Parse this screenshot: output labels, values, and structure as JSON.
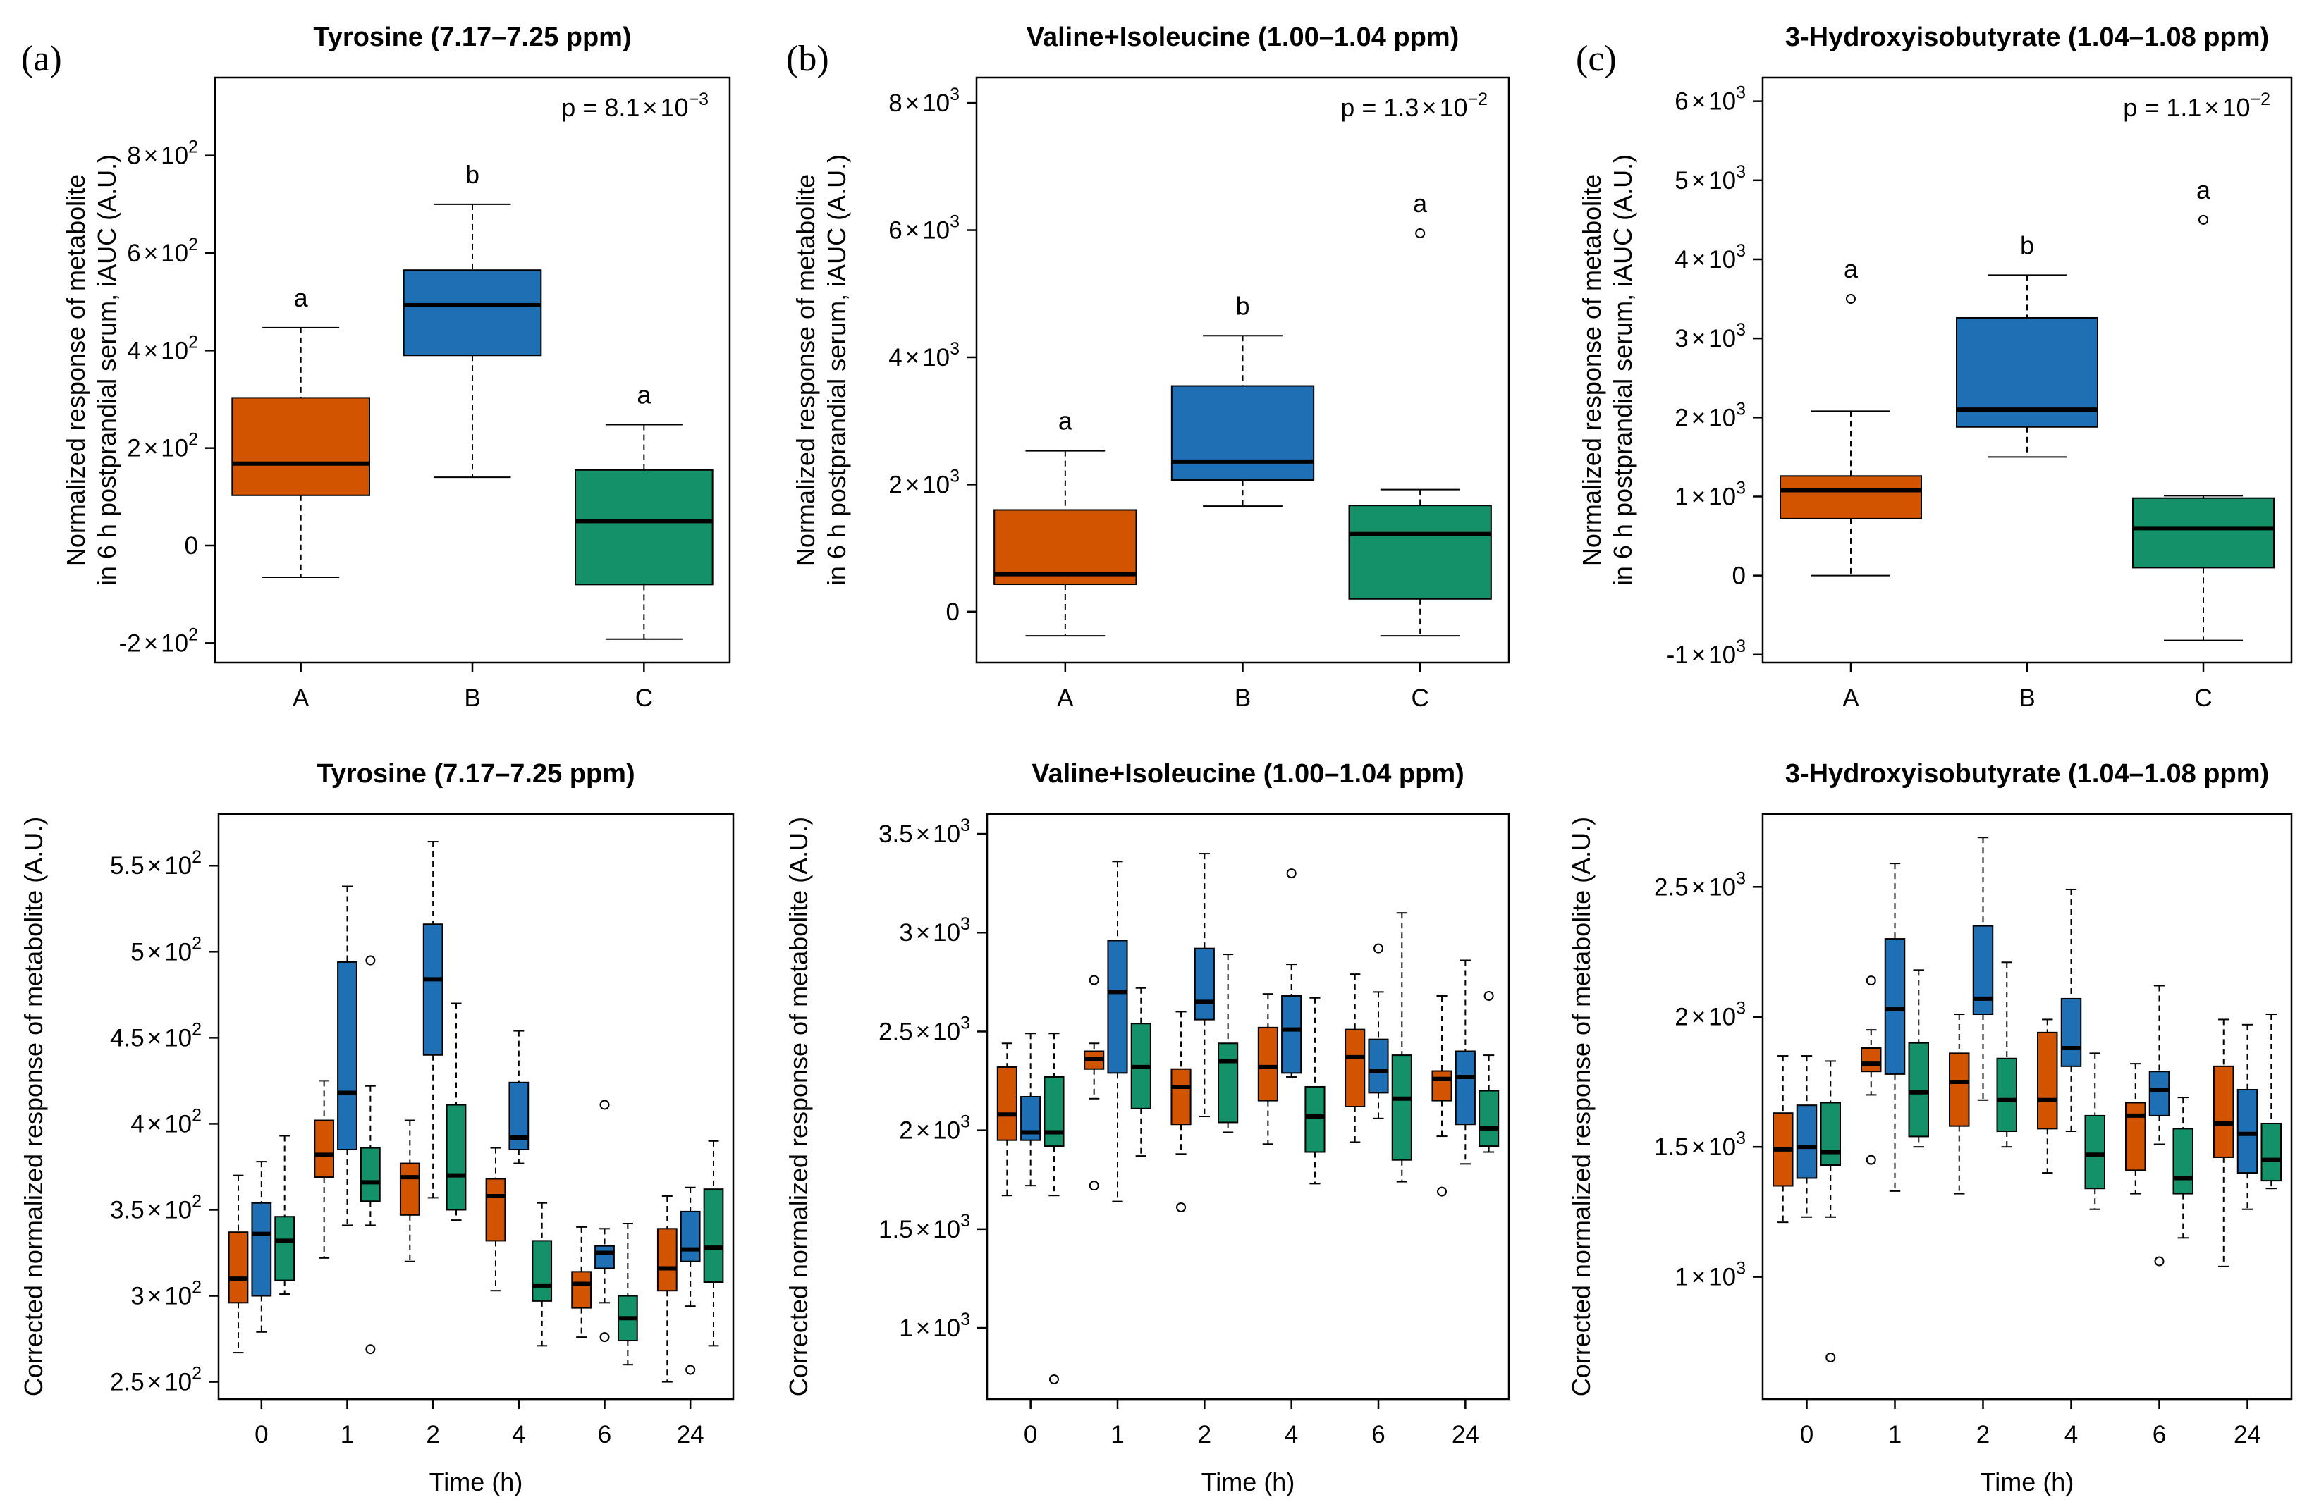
{
  "colors": {
    "A": "#D35400",
    "B": "#1F6FB4",
    "C": "#149169"
  },
  "chart_data": [
    {
      "type": "boxplot",
      "panel": "(a)",
      "title": "Tyrosine (7.17–7.25 ppm)",
      "ylabel_lines": [
        "Normalized response of metabolite",
        "in 6 h postprandial serum, iAUC (A.U.)"
      ],
      "xlabel": "",
      "ylim": [
        -240,
        960
      ],
      "yticks": [
        {
          "v": -200,
          "m": "-2",
          "e": "2"
        },
        {
          "v": 0,
          "m": "0",
          "e": ""
        },
        {
          "v": 200,
          "m": "2",
          "e": "2"
        },
        {
          "v": 400,
          "m": "4",
          "e": "2"
        },
        {
          "v": 600,
          "m": "6",
          "e": "2"
        },
        {
          "v": 800,
          "m": "8",
          "e": "2"
        }
      ],
      "p_value": {
        "prefix": "p = ",
        "mantissa": "8.1",
        "exponent": "−3"
      },
      "categories": [
        "A",
        "B",
        "C"
      ],
      "boxes": [
        {
          "group": "A",
          "min": -65,
          "q1": 103,
          "median": 168,
          "q3": 303,
          "max": 447,
          "outliers": [],
          "letter": "a"
        },
        {
          "group": "B",
          "min": 140,
          "q1": 390,
          "median": 493,
          "q3": 565,
          "max": 700,
          "outliers": [],
          "letter": "b"
        },
        {
          "group": "C",
          "min": -192,
          "q1": -80,
          "median": 50,
          "q3": 155,
          "max": 248,
          "outliers": [],
          "letter": "a"
        }
      ]
    },
    {
      "type": "boxplot",
      "panel": "(b)",
      "title": "Valine+Isoleucine (1.00–1.04 ppm)",
      "ylabel_lines": [
        "Normalized response of metabolite",
        "in 6 h postprandial serum, iAUC (A.U.)"
      ],
      "xlabel": "",
      "ylim": [
        -800,
        8400
      ],
      "yticks": [
        {
          "v": 0,
          "m": "0",
          "e": ""
        },
        {
          "v": 2000,
          "m": "2",
          "e": "3"
        },
        {
          "v": 4000,
          "m": "4",
          "e": "3"
        },
        {
          "v": 6000,
          "m": "6",
          "e": "3"
        },
        {
          "v": 8000,
          "m": "8",
          "e": "3"
        }
      ],
      "p_value": {
        "prefix": "p = ",
        "mantissa": "1.3",
        "exponent": "−2"
      },
      "categories": [
        "A",
        "B",
        "C"
      ],
      "boxes": [
        {
          "group": "A",
          "min": -380,
          "q1": 430,
          "median": 590,
          "q3": 1600,
          "max": 2530,
          "outliers": [],
          "letter": "a"
        },
        {
          "group": "B",
          "min": 1660,
          "q1": 2070,
          "median": 2360,
          "q3": 3550,
          "max": 4340,
          "outliers": [],
          "letter": "b"
        },
        {
          "group": "C",
          "min": -380,
          "q1": 200,
          "median": 1220,
          "q3": 1670,
          "max": 1920,
          "outliers": [
            5950
          ],
          "letter": "a"
        }
      ]
    },
    {
      "type": "boxplot",
      "panel": "(c)",
      "title": "3-Hydroxyisobutyrate (1.04–1.08 ppm)",
      "ylabel_lines": [
        "Normalized response of metabolite",
        "in 6 h postprandial serum, iAUC (A.U.)"
      ],
      "xlabel": "",
      "ylim": [
        -1100,
        6300
      ],
      "yticks": [
        {
          "v": -1000,
          "m": "-1",
          "e": "3"
        },
        {
          "v": 0,
          "m": "0",
          "e": ""
        },
        {
          "v": 1000,
          "m": "1",
          "e": "3"
        },
        {
          "v": 2000,
          "m": "2",
          "e": "3"
        },
        {
          "v": 3000,
          "m": "3",
          "e": "3"
        },
        {
          "v": 4000,
          "m": "4",
          "e": "3"
        },
        {
          "v": 5000,
          "m": "5",
          "e": "3"
        },
        {
          "v": 6000,
          "m": "6",
          "e": "3"
        }
      ],
      "p_value": {
        "prefix": "p = ",
        "mantissa": "1.1",
        "exponent": "−2"
      },
      "categories": [
        "A",
        "B",
        "C"
      ],
      "boxes": [
        {
          "group": "A",
          "min": 0,
          "q1": 720,
          "median": 1080,
          "q3": 1260,
          "max": 2080,
          "outliers": [
            3500
          ],
          "letter": "a"
        },
        {
          "group": "B",
          "min": 1500,
          "q1": 1880,
          "median": 2100,
          "q3": 3260,
          "max": 3800,
          "outliers": [],
          "letter": "b"
        },
        {
          "group": "C",
          "min": -820,
          "q1": 100,
          "median": 600,
          "q3": 980,
          "max": 1010,
          "outliers": [
            4500
          ],
          "letter": "a"
        }
      ]
    },
    {
      "type": "grouped_boxplot",
      "title": "Tyrosine (7.17–7.25 ppm)",
      "ylabel": "Corrected normalized response of metabolite (A.U.)",
      "xlabel": "Time (h)",
      "ylim": [
        240,
        580
      ],
      "yticks": [
        {
          "v": 250,
          "m": "2.5",
          "e": "2"
        },
        {
          "v": 300,
          "m": "3",
          "e": "2"
        },
        {
          "v": 350,
          "m": "3.5",
          "e": "2"
        },
        {
          "v": 400,
          "m": "4",
          "e": "2"
        },
        {
          "v": 450,
          "m": "4.5",
          "e": "2"
        },
        {
          "v": 500,
          "m": "5",
          "e": "2"
        },
        {
          "v": 550,
          "m": "5.5",
          "e": "2"
        }
      ],
      "categories": [
        "0",
        "1",
        "2",
        "4",
        "6",
        "24"
      ],
      "series": [
        {
          "name": "A",
          "boxes": [
            {
              "min": 267,
              "q1": 296,
              "median": 310,
              "q3": 337,
              "max": 370,
              "outliers": []
            },
            {
              "min": 322,
              "q1": 369,
              "median": 382,
              "q3": 402,
              "max": 425,
              "outliers": []
            },
            {
              "min": 320,
              "q1": 347,
              "median": 369,
              "q3": 377,
              "max": 402,
              "outliers": []
            },
            {
              "min": 303,
              "q1": 332,
              "median": 358,
              "q3": 368,
              "max": 386,
              "outliers": []
            },
            {
              "min": 276,
              "q1": 293,
              "median": 307,
              "q3": 314,
              "max": 340,
              "outliers": []
            },
            {
              "min": 250,
              "q1": 303,
              "median": 316,
              "q3": 339,
              "max": 358,
              "outliers": []
            }
          ]
        },
        {
          "name": "B",
          "boxes": [
            {
              "min": 279,
              "q1": 300,
              "median": 336,
              "q3": 354,
              "max": 378,
              "outliers": []
            },
            {
              "min": 341,
              "q1": 385,
              "median": 418,
              "q3": 494,
              "max": 538,
              "outliers": []
            },
            {
              "min": 357,
              "q1": 440,
              "median": 484,
              "q3": 516,
              "max": 564,
              "outliers": []
            },
            {
              "min": 377,
              "q1": 385,
              "median": 392,
              "q3": 424,
              "max": 454,
              "outliers": []
            },
            {
              "min": 296,
              "q1": 316,
              "median": 325,
              "q3": 329,
              "max": 339,
              "outliers": [
                276,
                411
              ]
            },
            {
              "min": 294,
              "q1": 320,
              "median": 327,
              "q3": 349,
              "max": 363,
              "outliers": [
                257
              ]
            }
          ]
        },
        {
          "name": "C",
          "boxes": [
            {
              "min": 301,
              "q1": 309,
              "median": 332,
              "q3": 346,
              "max": 393,
              "outliers": []
            },
            {
              "min": 341,
              "q1": 355,
              "median": 366,
              "q3": 386,
              "max": 422,
              "outliers": [
                269,
                495
              ]
            },
            {
              "min": 344,
              "q1": 350,
              "median": 370,
              "q3": 411,
              "max": 470,
              "outliers": []
            },
            {
              "min": 271,
              "q1": 297,
              "median": 306,
              "q3": 332,
              "max": 354,
              "outliers": []
            },
            {
              "min": 260,
              "q1": 274,
              "median": 287,
              "q3": 300,
              "max": 342,
              "outliers": []
            },
            {
              "min": 271,
              "q1": 308,
              "median": 328,
              "q3": 362,
              "max": 390,
              "outliers": []
            }
          ]
        }
      ]
    },
    {
      "type": "grouped_boxplot",
      "title": "Valine+Isoleucine (1.00–1.04 ppm)",
      "ylabel": "Corrected normalized response of metabolite (A.U.)",
      "xlabel": "Time (h)",
      "ylim": [
        640,
        3600
      ],
      "yticks": [
        {
          "v": 1000,
          "m": "1",
          "e": "3"
        },
        {
          "v": 1500,
          "m": "1.5",
          "e": "3"
        },
        {
          "v": 2000,
          "m": "2",
          "e": "3"
        },
        {
          "v": 2500,
          "m": "2.5",
          "e": "3"
        },
        {
          "v": 3000,
          "m": "3",
          "e": "3"
        },
        {
          "v": 3500,
          "m": "3.5",
          "e": "3"
        }
      ],
      "categories": [
        "0",
        "1",
        "2",
        "4",
        "6",
        "24"
      ],
      "series": [
        {
          "name": "A",
          "boxes": [
            {
              "min": 1670,
              "q1": 1950,
              "median": 2080,
              "q3": 2320,
              "max": 2440,
              "outliers": []
            },
            {
              "min": 2160,
              "q1": 2310,
              "median": 2360,
              "q3": 2400,
              "max": 2440,
              "outliers": [
                1720,
                2760
              ]
            },
            {
              "min": 1880,
              "q1": 2030,
              "median": 2220,
              "q3": 2310,
              "max": 2600,
              "outliers": [
                1610
              ]
            },
            {
              "min": 1930,
              "q1": 2150,
              "median": 2320,
              "q3": 2520,
              "max": 2690,
              "outliers": []
            },
            {
              "min": 1940,
              "q1": 2120,
              "median": 2370,
              "q3": 2510,
              "max": 2790,
              "outliers": []
            },
            {
              "min": 1970,
              "q1": 2150,
              "median": 2260,
              "q3": 2300,
              "max": 2680,
              "outliers": [
                1690
              ]
            }
          ]
        },
        {
          "name": "B",
          "boxes": [
            {
              "min": 1720,
              "q1": 1950,
              "median": 1990,
              "q3": 2170,
              "max": 2490,
              "outliers": []
            },
            {
              "min": 1640,
              "q1": 2290,
              "median": 2700,
              "q3": 2960,
              "max": 3360,
              "outliers": []
            },
            {
              "min": 2070,
              "q1": 2560,
              "median": 2650,
              "q3": 2920,
              "max": 3400,
              "outliers": []
            },
            {
              "min": 2270,
              "q1": 2290,
              "median": 2510,
              "q3": 2680,
              "max": 2840,
              "outliers": [
                3300
              ]
            },
            {
              "min": 2060,
              "q1": 2190,
              "median": 2300,
              "q3": 2460,
              "max": 2700,
              "outliers": [
                2920
              ]
            },
            {
              "min": 1830,
              "q1": 2030,
              "median": 2270,
              "q3": 2400,
              "max": 2860,
              "outliers": []
            }
          ]
        },
        {
          "name": "C",
          "boxes": [
            {
              "min": 1670,
              "q1": 1920,
              "median": 1990,
              "q3": 2270,
              "max": 2490,
              "outliers": [
                740
              ]
            },
            {
              "min": 1870,
              "q1": 2110,
              "median": 2320,
              "q3": 2540,
              "max": 2720,
              "outliers": []
            },
            {
              "min": 1990,
              "q1": 2040,
              "median": 2350,
              "q3": 2440,
              "max": 2890,
              "outliers": []
            },
            {
              "min": 1730,
              "q1": 1890,
              "median": 2070,
              "q3": 2220,
              "max": 2670,
              "outliers": []
            },
            {
              "min": 1740,
              "q1": 1850,
              "median": 2160,
              "q3": 2380,
              "max": 3100,
              "outliers": []
            },
            {
              "min": 1890,
              "q1": 1920,
              "median": 2010,
              "q3": 2200,
              "max": 2380,
              "outliers": [
                2680
              ]
            }
          ]
        }
      ]
    },
    {
      "type": "grouped_boxplot",
      "title": "3-Hydroxyisobutyrate (1.04–1.08 ppm)",
      "ylabel": "Corrected normalized response of metabolite (A.U.)",
      "xlabel": "Time (h)",
      "ylim": [
        530,
        2780
      ],
      "yticks": [
        {
          "v": 1000,
          "m": "1",
          "e": "3"
        },
        {
          "v": 1500,
          "m": "1.5",
          "e": "3"
        },
        {
          "v": 2000,
          "m": "2",
          "e": "3"
        },
        {
          "v": 2500,
          "m": "2.5",
          "e": "3"
        }
      ],
      "categories": [
        "0",
        "1",
        "2",
        "4",
        "6",
        "24"
      ],
      "series": [
        {
          "name": "A",
          "boxes": [
            {
              "min": 1210,
              "q1": 1350,
              "median": 1490,
              "q3": 1630,
              "max": 1850,
              "outliers": []
            },
            {
              "min": 1700,
              "q1": 1790,
              "median": 1820,
              "q3": 1880,
              "max": 1950,
              "outliers": [
                1450,
                2140
              ]
            },
            {
              "min": 1320,
              "q1": 1580,
              "median": 1750,
              "q3": 1860,
              "max": 2010,
              "outliers": []
            },
            {
              "min": 1400,
              "q1": 1570,
              "median": 1680,
              "q3": 1940,
              "max": 1990,
              "outliers": []
            },
            {
              "min": 1320,
              "q1": 1410,
              "median": 1620,
              "q3": 1670,
              "max": 1820,
              "outliers": []
            },
            {
              "min": 1040,
              "q1": 1460,
              "median": 1590,
              "q3": 1810,
              "max": 1990,
              "outliers": []
            }
          ]
        },
        {
          "name": "B",
          "boxes": [
            {
              "min": 1230,
              "q1": 1380,
              "median": 1500,
              "q3": 1660,
              "max": 1850,
              "outliers": []
            },
            {
              "min": 1330,
              "q1": 1780,
              "median": 2030,
              "q3": 2300,
              "max": 2590,
              "outliers": []
            },
            {
              "min": 1680,
              "q1": 2010,
              "median": 2070,
              "q3": 2350,
              "max": 2690,
              "outliers": []
            },
            {
              "min": 1560,
              "q1": 1810,
              "median": 1880,
              "q3": 2070,
              "max": 2490,
              "outliers": []
            },
            {
              "min": 1510,
              "q1": 1620,
              "median": 1720,
              "q3": 1790,
              "max": 2120,
              "outliers": [
                1060
              ]
            },
            {
              "min": 1260,
              "q1": 1400,
              "median": 1550,
              "q3": 1720,
              "max": 1970,
              "outliers": []
            }
          ]
        },
        {
          "name": "C",
          "boxes": [
            {
              "min": 1230,
              "q1": 1430,
              "median": 1480,
              "q3": 1670,
              "max": 1830,
              "outliers": [
                690
              ]
            },
            {
              "min": 1500,
              "q1": 1540,
              "median": 1710,
              "q3": 1900,
              "max": 2180,
              "outliers": []
            },
            {
              "min": 1500,
              "q1": 1560,
              "median": 1680,
              "q3": 1840,
              "max": 2210,
              "outliers": []
            },
            {
              "min": 1260,
              "q1": 1340,
              "median": 1470,
              "q3": 1620,
              "max": 1860,
              "outliers": []
            },
            {
              "min": 1150,
              "q1": 1320,
              "median": 1380,
              "q3": 1570,
              "max": 1690,
              "outliers": []
            },
            {
              "min": 1340,
              "q1": 1370,
              "median": 1450,
              "q3": 1590,
              "max": 2010,
              "outliers": []
            }
          ]
        }
      ]
    }
  ]
}
